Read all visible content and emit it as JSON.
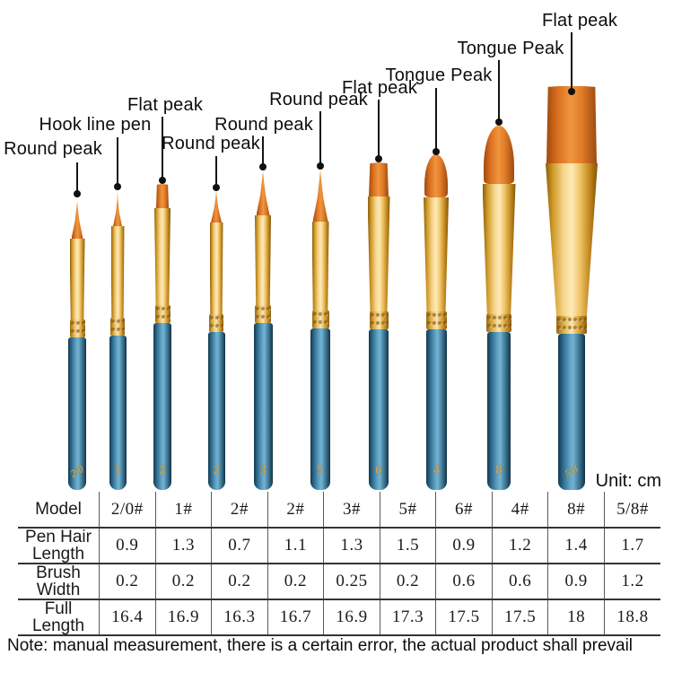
{
  "unit_label": "Unit: cm",
  "note": "Note: manual measurement, there is a certain error, the actual product shall prevail",
  "colors": {
    "handle_blue": "#4e97bb",
    "ferrule_gold": "#e3b04b",
    "bristle_orange": "#e07b28",
    "text_black": "#0d0d0d"
  },
  "brushes": [
    {
      "label": "Round peak",
      "handle_number": "2/0"
    },
    {
      "label": "Hook line pen",
      "handle_number": "1"
    },
    {
      "label": "Flat peak",
      "handle_number": "2"
    },
    {
      "label": "Round peak",
      "handle_number": "2"
    },
    {
      "label": "Round peak",
      "handle_number": "3"
    },
    {
      "label": "Round peak",
      "handle_number": "5"
    },
    {
      "label": "Flat peak",
      "handle_number": "6"
    },
    {
      "label": "Tongue Peak",
      "handle_number": "4"
    },
    {
      "label": "Tongue Peak",
      "handle_number": "8"
    },
    {
      "label": "Flat peak",
      "handle_number": "5/8"
    }
  ],
  "table": {
    "rows": [
      {
        "header": "Model",
        "values": [
          "2/0#",
          "1#",
          "2#",
          "2#",
          "3#",
          "5#",
          "6#",
          "4#",
          "8#",
          "5/8#"
        ]
      },
      {
        "header": "Pen Hair Length",
        "values": [
          "0.9",
          "1.3",
          "0.7",
          "1.1",
          "1.3",
          "1.5",
          "0.9",
          "1.2",
          "1.4",
          "1.7"
        ]
      },
      {
        "header": "Brush Width",
        "values": [
          "0.2",
          "0.2",
          "0.2",
          "0.2",
          "0.25",
          "0.2",
          "0.6",
          "0.6",
          "0.9",
          "1.2"
        ]
      },
      {
        "header": "Full Length",
        "values": [
          "16.4",
          "16.9",
          "16.3",
          "16.7",
          "16.9",
          "17.3",
          "17.5",
          "17.5",
          "18",
          "18.8"
        ]
      }
    ]
  }
}
